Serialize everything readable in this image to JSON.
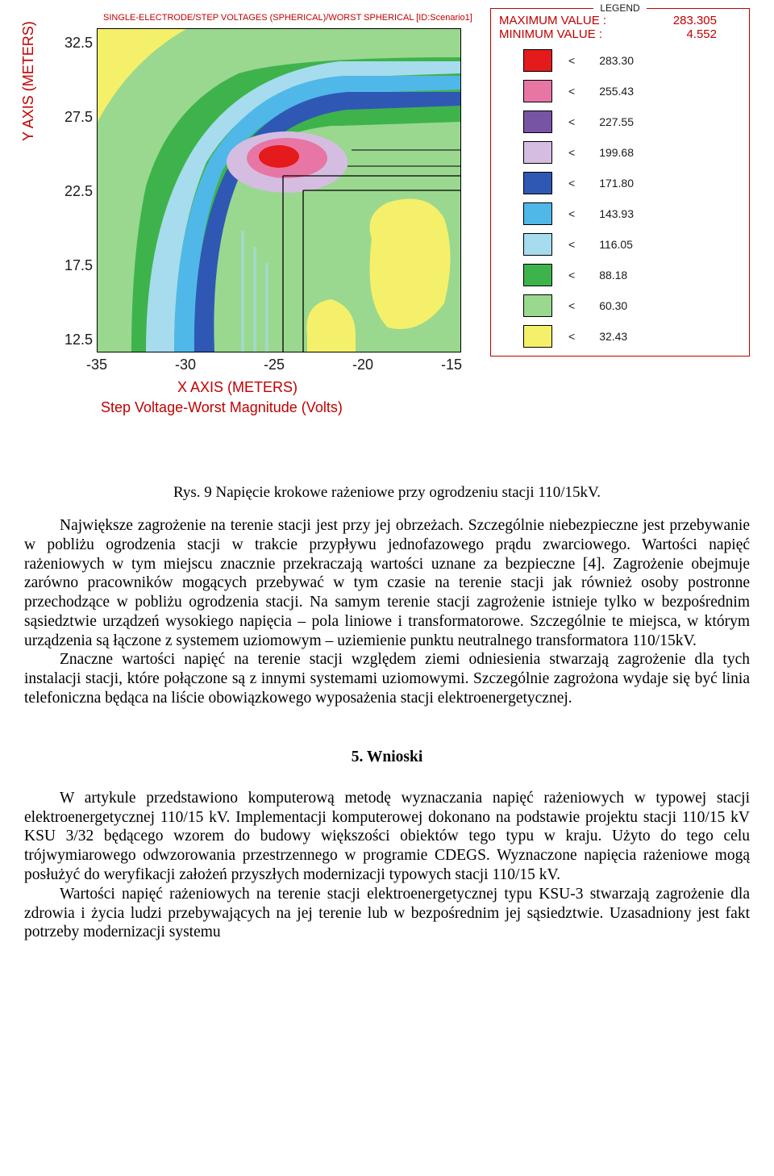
{
  "chart": {
    "type": "contour-heatmap",
    "title_small": "SINGLE-ELECTRODE/STEP VOLTAGES (SPHERICAL)/WORST SPHERICAL [ID:Scenario1]",
    "y_axis_label": "Y AXIS  (METERS)",
    "x_axis_label": "X AXIS  (METERS)",
    "subtitle": "Step Voltage-Worst Magnitude (Volts)",
    "y_ticks": [
      "32.5",
      "27.5",
      "22.5",
      "17.5",
      "12.5"
    ],
    "y_tick_tops": [
      33,
      125,
      217,
      309,
      401
    ],
    "x_ticks": [
      "-35",
      "-30",
      "-25",
      "-20",
      "-15"
    ],
    "x_tick_lefts": [
      80,
      190,
      300,
      410,
      520
    ],
    "background_color": "#ffffff",
    "axis_label_color": "#c00000",
    "tick_color": "#1a1a1a"
  },
  "legend": {
    "title": "LEGEND",
    "max_label": "MAXIMUM VALUE :",
    "max_value": "283.305",
    "min_label": "MINIMUM VALUE :",
    "min_value": "4.552",
    "symbol": "<",
    "entries": [
      {
        "color": "#e41a1c",
        "value": "283.30"
      },
      {
        "color": "#e776a5",
        "value": "255.43"
      },
      {
        "color": "#7754a4",
        "value": "227.55"
      },
      {
        "color": "#d5bde2",
        "value": "199.68"
      },
      {
        "color": "#2f58b4",
        "value": "171.80"
      },
      {
        "color": "#4fb8e8",
        "value": "143.93"
      },
      {
        "color": "#a6dced",
        "value": "116.05"
      },
      {
        "color": "#3fb34b",
        "value": "88.18"
      },
      {
        "color": "#9ad88f",
        "value": "60.30"
      },
      {
        "color": "#f5f06a",
        "value": "32.43"
      }
    ]
  },
  "caption": "Rys. 9 Napięcie krokowe rażeniowe przy ogrodzeniu stacji 110/15kV.",
  "para1": "Największe zagrożenie na terenie stacji jest przy jej obrzeżach. Szczególnie niebezpieczne jest przebywanie w pobliżu ogrodzenia stacji w trakcie przypływu jednofazowego prądu zwarciowego. Wartości napięć rażeniowych w tym miejscu znacznie przekraczają wartości uznane za bezpieczne [4]. Zagrożenie obejmuje zarówno pracowników mogących przebywać w tym czasie na terenie stacji jak również osoby postronne przechodzące w pobliżu ogrodzenia stacji. Na samym terenie stacji zagrożenie istnieje tylko w bezpośrednim sąsiedztwie urządzeń wysokiego napięcia – pola liniowe i transformatorowe. Szczególnie te miejsca, w którym urządzenia są łączone z systemem uziomowym – uziemienie punktu neutralnego transformatora 110/15kV.",
  "para2": "Znaczne wartości napięć na terenie stacji względem ziemi odniesienia stwarzają zagrożenie dla tych instalacji stacji, które połączone są z innymi systemami uziomowymi. Szczególnie zagrożona wydaje się być linia telefoniczna będąca na liście obowiązkowego wyposażenia stacji elektroenergetycznej.",
  "section_heading": "5. Wnioski",
  "para3": "W artykule przedstawiono komputerową metodę wyznaczania napięć rażeniowych w typowej stacji elektroenergetycznej 110/15 kV. Implementacji komputerowej dokonano na podstawie projektu stacji 110/15 kV KSU 3/32 będącego wzorem do budowy większości obiektów tego typu w kraju. Użyto do tego celu trójwymiarowego odwzorowania przestrzennego w programie CDEGS. Wyznaczone napięcia rażeniowe mogą posłużyć do weryfikacji założeń przyszłych modernizacji typowych stacji 110/15 kV.",
  "para4": "Wartości napięć rażeniowych na terenie stacji elektroenergetycznej typu KSU-3 stwarzają zagrożenie dla zdrowia i życia ludzi przebywających na jej terenie lub w bezpośrednim jej sąsiedztwie. Uzasadniony jest fakt potrzeby modernizacji systemu"
}
